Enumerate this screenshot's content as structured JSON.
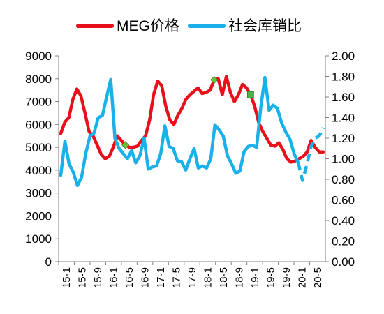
{
  "chart_data": {
    "type": "line",
    "title": "",
    "legend_position": "top",
    "grid": false,
    "x_labels": [
      "15-1",
      "15-5",
      "15-9",
      "16-1",
      "16-5",
      "16-9",
      "17-1",
      "17-5",
      "17-9",
      "18-1",
      "18-5",
      "18-9",
      "19-1",
      "19-5",
      "19-9",
      "20-1",
      "20-5"
    ],
    "y_left": {
      "min": 0,
      "max": 9000,
      "ticks": [
        "0",
        "1000",
        "2000",
        "3000",
        "4000",
        "5000",
        "6000",
        "7000",
        "8000",
        "9000"
      ]
    },
    "y_right": {
      "min": 0,
      "max": 2.0,
      "ticks": [
        "0.00",
        "0.20",
        "0.40",
        "0.60",
        "0.80",
        "1.00",
        "1.20",
        "1.40",
        "1.60",
        "1.80",
        "2.00"
      ]
    },
    "series": [
      {
        "name": "MEG价格",
        "axis": "left",
        "color": "#E8111B",
        "values": [
          5600,
          6100,
          6300,
          7100,
          7550,
          7250,
          6500,
          5700,
          5500,
          5100,
          4700,
          4500,
          4600,
          5000,
          5500,
          5300,
          5100,
          5000,
          5000,
          5050,
          5300,
          5500,
          6200,
          7300,
          7900,
          7700,
          6800,
          6200,
          6000,
          6400,
          6700,
          7100,
          7300,
          7450,
          7600,
          7350,
          7400,
          7500,
          7950,
          8000,
          7300,
          8100,
          7400,
          7000,
          7300,
          7750,
          7600,
          7300,
          6800,
          6100,
          5700,
          5400,
          5100,
          5050,
          5200,
          4900,
          4500,
          4350,
          4400,
          4500,
          4600,
          4800,
          5300,
          5000,
          4800,
          4800
        ],
        "dashed_from_index": null
      },
      {
        "name": "社会库销比",
        "axis": "right",
        "color": "#1AB1EA",
        "values": [
          0.84,
          1.17,
          0.95,
          0.87,
          0.74,
          0.82,
          1.05,
          1.22,
          1.25,
          1.4,
          1.42,
          1.6,
          1.77,
          1.2,
          1.1,
          1.05,
          1.0,
          1.08,
          0.96,
          1.03,
          1.2,
          0.9,
          0.92,
          0.93,
          1.05,
          1.32,
          1.12,
          1.1,
          0.98,
          0.97,
          0.89,
          1.0,
          1.1,
          0.91,
          0.93,
          0.91,
          1.0,
          1.33,
          1.28,
          1.22,
          1.03,
          0.95,
          0.86,
          0.88,
          1.07,
          1.12,
          1.13,
          1.11,
          1.5,
          1.79,
          1.47,
          1.52,
          1.49,
          1.35,
          1.26,
          1.19,
          1.05,
          0.96,
          0.79,
          0.93,
          1.11,
          1.2,
          1.22,
          1.3
        ],
        "dashed_from_index": 57
      }
    ],
    "markers": [
      {
        "series_index": 0,
        "point_index": 16,
        "shape": "diamond",
        "color": "#6BBF3B"
      },
      {
        "series_index": 0,
        "point_index": 38,
        "shape": "diamond",
        "color": "#6BBF3B"
      },
      {
        "series_index": 0,
        "point_index": 47,
        "shape": "square",
        "color": "#4FAF4F"
      }
    ]
  }
}
